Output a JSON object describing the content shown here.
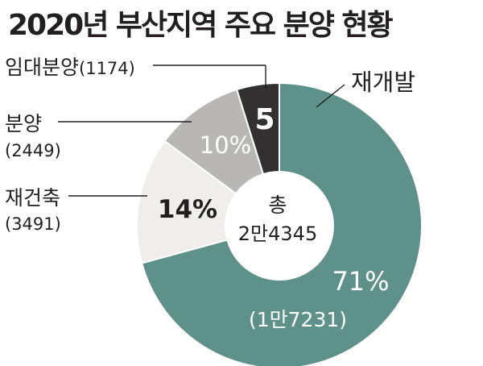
{
  "title": "2020년 부산지역 주요 분양 현황",
  "chart_data": {
    "type": "pie",
    "title": "2020년 부산지역 주요 분양 현황",
    "center_label": {
      "line1": "총",
      "line2": "2만4345"
    },
    "slices": [
      {
        "label": "재개발",
        "count": 17231,
        "count_text": "(1만7231)",
        "percent": 71,
        "percent_text": "71%",
        "color": "#5f918b"
      },
      {
        "label": "재건축",
        "count": 3491,
        "count_text": "(3491)",
        "percent": 14,
        "percent_text": "14%",
        "color": "#efeeed"
      },
      {
        "label": "분양",
        "count": 2449,
        "count_text": "(2449)",
        "percent": 10,
        "percent_text": "10%",
        "color": "#b8b7b6"
      },
      {
        "label": "임대분양",
        "count": 1174,
        "count_text": "(1174)",
        "percent": 5,
        "percent_text": "5",
        "color": "#323031"
      }
    ]
  }
}
